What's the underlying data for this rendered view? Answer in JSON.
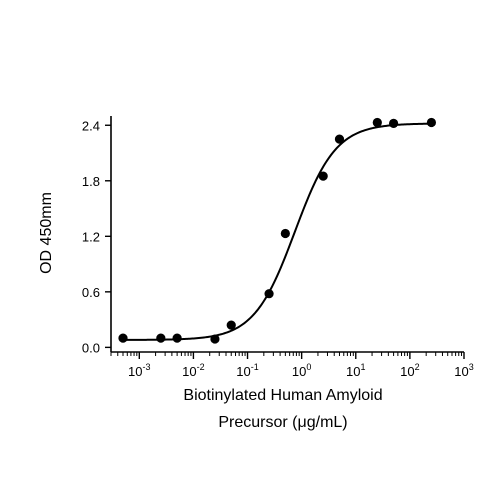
{
  "chart_data": {
    "type": "scatter",
    "xscale": "log",
    "xlim": [
      0.0003,
      1000
    ],
    "ylim": [
      -0.05,
      2.5
    ],
    "xlabel_lines": [
      "Biotinylated Human Amyloid",
      "Precursor (μg/mL)"
    ],
    "ylabel": "OD 450mm",
    "y_ticks": [
      0.0,
      0.6,
      1.2,
      1.8,
      2.4
    ],
    "y_tick_labels": [
      "0.0",
      "0.6",
      "1.2",
      "1.8",
      "2.4"
    ],
    "x_ticks": [
      0.001,
      0.01,
      0.1,
      1,
      10,
      100,
      1000
    ],
    "x_tick_labels": [
      {
        "base": "10",
        "exp": "-3"
      },
      {
        "base": "10",
        "exp": "-2"
      },
      {
        "base": "10",
        "exp": "-1"
      },
      {
        "base": "10",
        "exp": "0"
      },
      {
        "base": "10",
        "exp": "1"
      },
      {
        "base": "10",
        "exp": "2"
      },
      {
        "base": "10",
        "exp": "3"
      }
    ],
    "points": [
      {
        "x": 0.0005,
        "y": 0.1
      },
      {
        "x": 0.0025,
        "y": 0.1
      },
      {
        "x": 0.005,
        "y": 0.1
      },
      {
        "x": 0.025,
        "y": 0.09
      },
      {
        "x": 0.05,
        "y": 0.24
      },
      {
        "x": 0.25,
        "y": 0.58
      },
      {
        "x": 0.5,
        "y": 1.23
      },
      {
        "x": 2.5,
        "y": 1.85
      },
      {
        "x": 5,
        "y": 2.25
      },
      {
        "x": 25,
        "y": 2.43
      },
      {
        "x": 50,
        "y": 2.42
      },
      {
        "x": 250,
        "y": 2.43
      }
    ],
    "fit": {
      "type": "4PL",
      "bottom": 0.08,
      "top": 2.42,
      "ec50": 0.75,
      "hill": 1.15,
      "x_range": [
        0.0005,
        250
      ]
    },
    "grid": false,
    "legend": "none"
  }
}
